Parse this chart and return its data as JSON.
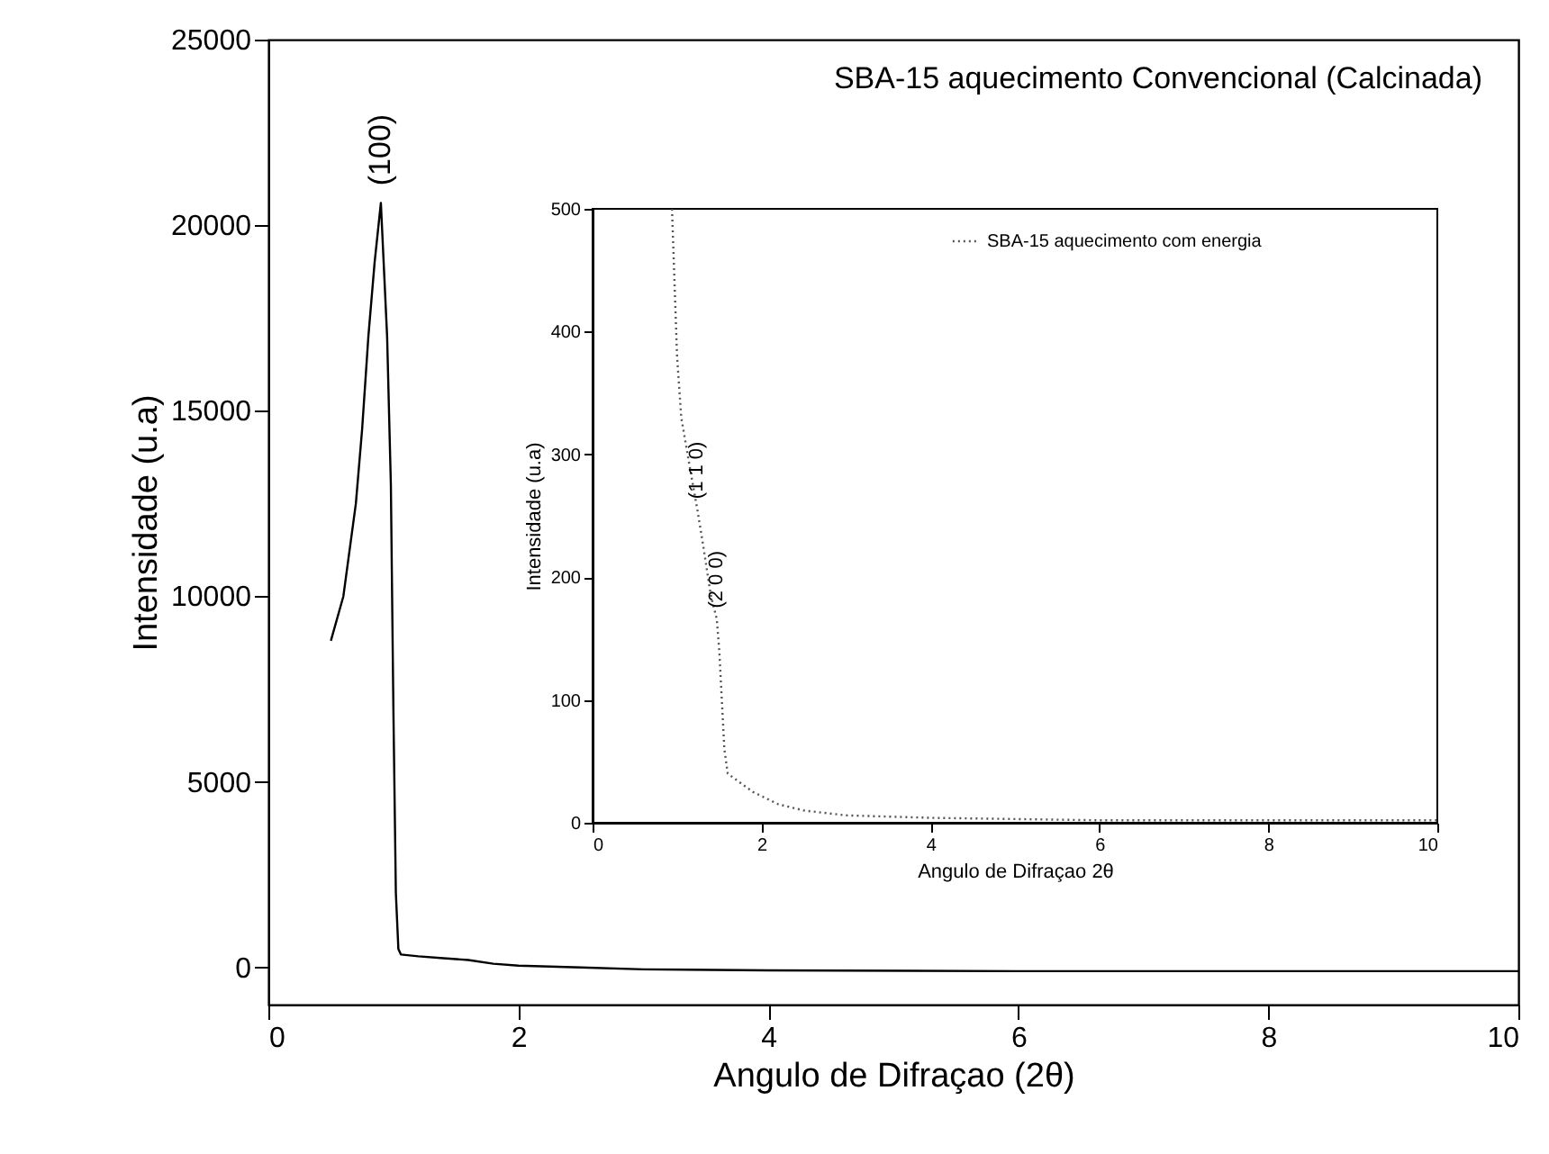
{
  "chart_data": [
    {
      "type": "line",
      "xlabel": "Angulo de Difraçao (2θ)",
      "ylabel": "Intensidade (u.a)",
      "xlim": [
        0,
        10
      ],
      "ylim": [
        -1000,
        25000
      ],
      "xticks": [
        0,
        2,
        4,
        6,
        8,
        10
      ],
      "yticks": [
        0,
        5000,
        10000,
        15000,
        20000,
        25000
      ],
      "grid": false,
      "line_style": "solid",
      "annotations": [
        {
          "text": "(100)",
          "x": 0.9,
          "y": 20600
        },
        "SBA-15 aquecimento Convencional (Calcinada)"
      ],
      "series": [
        {
          "color": "#000000",
          "x": [
            0.5,
            0.6,
            0.7,
            0.75,
            0.8,
            0.85,
            0.9,
            0.95,
            0.98,
            1.0,
            1.02,
            1.04,
            1.06,
            1.2,
            1.4,
            1.6,
            1.8,
            2.0,
            2.5,
            3,
            4,
            6,
            8,
            10
          ],
          "values": [
            8800,
            10000,
            12500,
            14500,
            17000,
            19000,
            20600,
            17000,
            13000,
            7000,
            2000,
            500,
            350,
            300,
            250,
            200,
            100,
            50,
            0,
            -50,
            -80,
            -100,
            -100,
            -100
          ]
        }
      ]
    },
    {
      "type": "line",
      "xlabel": "Angulo de Difraçao 2θ",
      "ylabel": "Intensidade (u.a)",
      "xlim": [
        0,
        10
      ],
      "ylim": [
        0,
        500
      ],
      "xticks": [
        0,
        2,
        4,
        6,
        8,
        10
      ],
      "yticks": [
        0,
        100,
        200,
        300,
        400,
        500
      ],
      "grid": false,
      "legend": "top right",
      "line_style": "dotted",
      "annotations": [
        {
          "text": "(1 1 0)",
          "x": 1.24,
          "y": 255
        },
        {
          "text": "(2 0 0)",
          "x": 1.47,
          "y": 166
        }
      ],
      "series": [
        {
          "name": "SBA-15 aquecimento com energia",
          "color": "#555555",
          "x": [
            0.94,
            0.97,
            1.0,
            1.05,
            1.15,
            1.24,
            1.3,
            1.4,
            1.47,
            1.5,
            1.53,
            1.56,
            1.6,
            1.7,
            1.9,
            2.2,
            2.5,
            3,
            4,
            5,
            6,
            8,
            10
          ],
          "values": [
            500,
            440,
            380,
            330,
            290,
            255,
            230,
            185,
            166,
            140,
            100,
            60,
            40,
            35,
            25,
            15,
            10,
            6,
            4,
            3,
            2,
            2,
            2
          ]
        }
      ]
    }
  ]
}
